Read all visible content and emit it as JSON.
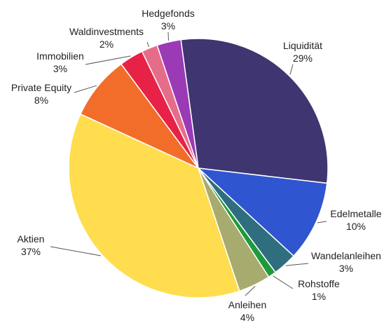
{
  "chart_data": {
    "type": "pie",
    "slices": [
      {
        "label": "Liquidität",
        "pct_label": "29%",
        "value": 29,
        "color": "#3f3570"
      },
      {
        "label": "Edelmetalle",
        "pct_label": "10%",
        "value": 10,
        "color": "#2f55d0"
      },
      {
        "label": "Wandelanleihen",
        "pct_label": "3%",
        "value": 3,
        "color": "#2e6e7e"
      },
      {
        "label": "Rohstoffe",
        "pct_label": "1%",
        "value": 1,
        "color": "#1e9a3c"
      },
      {
        "label": "Anleihen",
        "pct_label": "4%",
        "value": 4,
        "color": "#a7ab6d"
      },
      {
        "label": "Aktien",
        "pct_label": "37%",
        "value": 37,
        "color": "#ffdd4e"
      },
      {
        "label": "Private Equity",
        "pct_label": "8%",
        "value": 8,
        "color": "#f26d2a"
      },
      {
        "label": "Immobilien",
        "pct_label": "3%",
        "value": 3,
        "color": "#e82247"
      },
      {
        "label": "Waldinvestments",
        "pct_label": "2%",
        "value": 2,
        "color": "#e66d8a"
      },
      {
        "label": "Hedgefonds",
        "pct_label": "3%",
        "value": 3,
        "color": "#9a3ab5"
      }
    ]
  }
}
